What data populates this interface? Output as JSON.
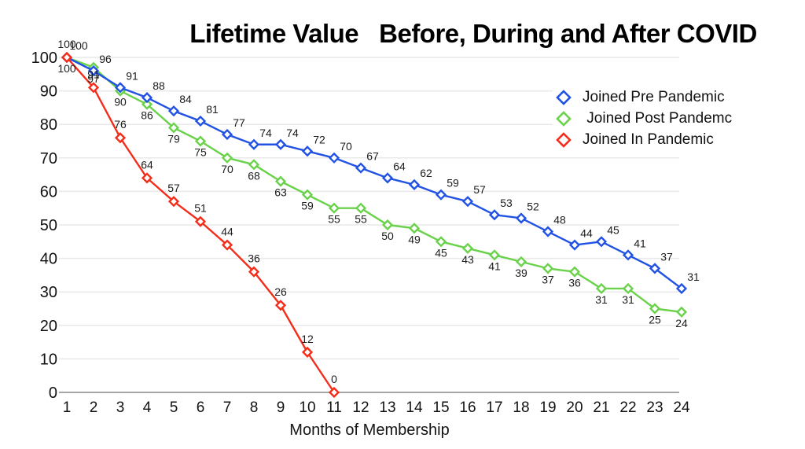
{
  "title": "Lifetime Value   Before, During and After COVID",
  "chart_data": {
    "type": "line",
    "title": "Lifetime Value   Before, During and After COVID",
    "xlabel": "Months of Membership",
    "ylabel": "",
    "x": [
      1,
      2,
      3,
      4,
      5,
      6,
      7,
      8,
      9,
      10,
      11,
      12,
      13,
      14,
      15,
      16,
      17,
      18,
      19,
      20,
      21,
      22,
      23,
      24
    ],
    "xticks": [
      "1",
      "2",
      "3",
      "4",
      "5",
      "6",
      "7",
      "8",
      "9",
      "10",
      "11",
      "12",
      "13",
      "14",
      "15",
      "16",
      "17",
      "18",
      "19",
      "20",
      "21",
      "22",
      "23",
      "24"
    ],
    "yticks": [
      0,
      10,
      20,
      30,
      40,
      50,
      60,
      70,
      80,
      90,
      100
    ],
    "ylim": [
      0,
      100
    ],
    "grid": "horizontal",
    "point_labels_shown": true,
    "legend_position": "top-right",
    "series": [
      {
        "name": "Joined Pre Pandemic",
        "color": "#2152e3",
        "marker": "diamond",
        "values": [
          100,
          96,
          91,
          88,
          84,
          81,
          77,
          74,
          74,
          72,
          70,
          67,
          64,
          62,
          59,
          57,
          53,
          52,
          48,
          44,
          45,
          41,
          37,
          31
        ]
      },
      {
        "name": " Joined Post Pandemc",
        "color": "#69d24a",
        "marker": "diamond",
        "values": [
          100,
          97,
          90,
          86,
          79,
          75,
          70,
          68,
          63,
          59,
          55,
          55,
          50,
          49,
          45,
          43,
          41,
          39,
          37,
          36,
          31,
          31,
          25,
          24
        ]
      },
      {
        "name": "Joined In Pandemic",
        "color": "#f42d1b",
        "marker": "diamond",
        "values": [
          100,
          91,
          76,
          64,
          57,
          51,
          44,
          36,
          26,
          12,
          0
        ]
      }
    ]
  },
  "colors": {
    "gridline": "#e9e9e9",
    "axis_line": "#a7a7a7",
    "text": "#121212",
    "background": "#ffffff"
  }
}
